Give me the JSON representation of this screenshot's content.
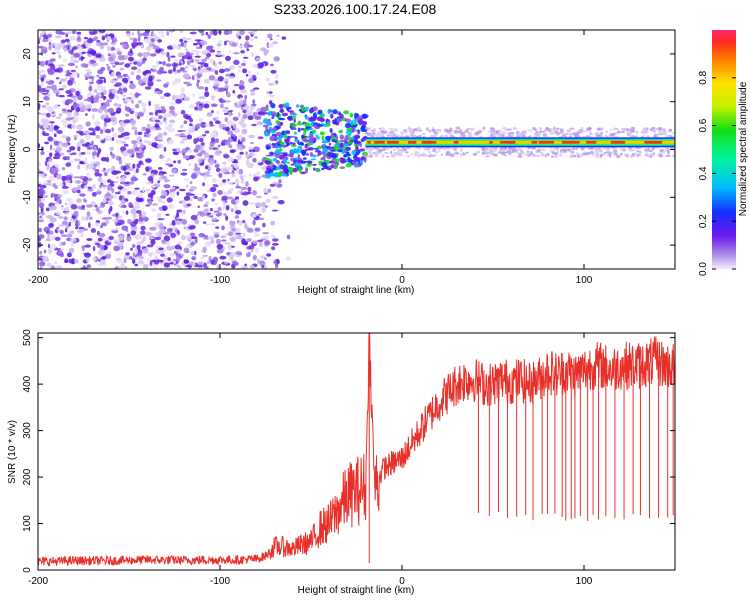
{
  "figure": {
    "title": "S233.2026.100.17.24.E08"
  },
  "chart_data": [
    {
      "type": "heatmap",
      "title": "S233.2026.100.17.24.E08",
      "xlabel": "Height of straight line (km)",
      "ylabel": "Frequency (Hz)",
      "xlim": [
        -200,
        150
      ],
      "ylim": [
        -25,
        25
      ],
      "xticks": [
        -200,
        -100,
        0,
        100
      ],
      "xtick_labels": [
        "-200",
        "-100",
        "0",
        "100"
      ],
      "yticks": [
        -20,
        -10,
        0,
        10,
        20
      ],
      "ytick_labels": [
        "-20",
        "-10",
        "0",
        "10",
        "20"
      ],
      "colorbar": {
        "label": "Normalized spectral amplitude",
        "range": [
          0,
          1
        ],
        "ticks": [
          0.0,
          0.2,
          0.4,
          0.6,
          0.8
        ],
        "tick_labels": [
          "0.0",
          "0.2",
          "0.4",
          "0.6",
          "0.8"
        ]
      },
      "features": {
        "noise_region_x": [
          -200,
          -70
        ],
        "transition_region_x": [
          -70,
          -20
        ],
        "signal_line_x": [
          -20,
          150
        ],
        "signal_line_frequency": 1.5
      }
    },
    {
      "type": "line",
      "xlabel": "Height of straight line (km)",
      "ylabel": "SNR (10 * v/v)",
      "xlim": [
        -200,
        150
      ],
      "ylim": [
        0,
        510
      ],
      "xticks": [
        -200,
        -100,
        0,
        100
      ],
      "xtick_labels": [
        "-200",
        "-100",
        "0",
        "100"
      ],
      "yticks": [
        0,
        100,
        200,
        300,
        400,
        500
      ],
      "ytick_labels": [
        "0",
        "100",
        "200",
        "300",
        "400",
        "500"
      ],
      "color": "#e8302a",
      "series": [
        {
          "name": "SNR",
          "x": [
            -200,
            -180,
            -160,
            -140,
            -120,
            -100,
            -90,
            -80,
            -75,
            -70,
            -65,
            -60,
            -55,
            -50,
            -45,
            -40,
            -35,
            -30,
            -25,
            -20,
            -18,
            -15,
            -10,
            -5,
            0,
            5,
            10,
            15,
            20,
            25,
            30,
            35,
            40,
            45,
            50,
            55,
            60,
            65,
            70,
            75,
            80,
            85,
            90,
            95,
            100,
            105,
            110,
            115,
            120,
            125,
            130,
            135,
            140,
            145,
            150
          ],
          "values": [
            18,
            20,
            20,
            22,
            21,
            22,
            22,
            24,
            30,
            50,
            50,
            45,
            55,
            60,
            90,
            100,
            130,
            160,
            170,
            180,
            500,
            180,
            220,
            230,
            240,
            270,
            300,
            330,
            360,
            380,
            400,
            410,
            410,
            400,
            400,
            410,
            405,
            410,
            400,
            410,
            430,
            420,
            430,
            420,
            430,
            440,
            440,
            430,
            440,
            440,
            440,
            445,
            450,
            440,
            440
          ]
        }
      ],
      "dropouts_x": [
        42,
        48,
        53,
        58,
        63,
        68,
        72,
        77,
        80,
        84,
        88,
        90,
        93,
        95,
        98,
        102,
        105,
        108,
        112,
        117,
        122,
        127,
        131,
        136,
        141,
        146,
        149
      ],
      "dropout_min": 105
    }
  ]
}
